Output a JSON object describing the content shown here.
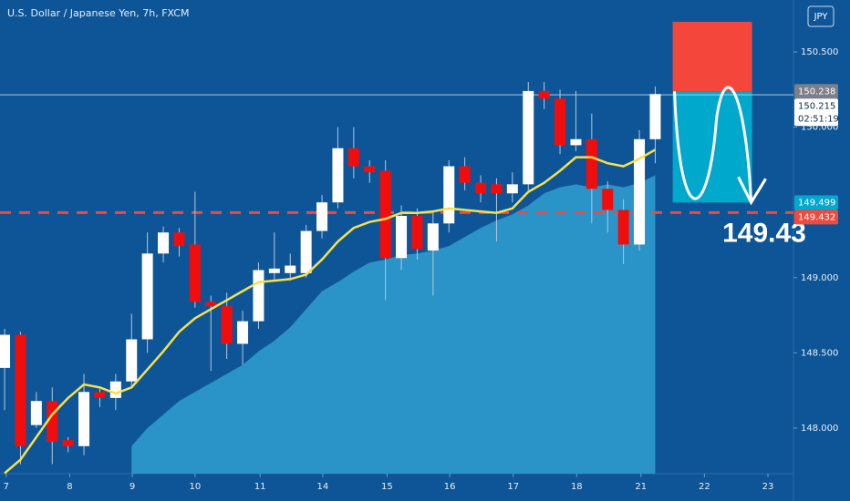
{
  "chart_data": {
    "type": "candlestick",
    "title": "U.S. Dollar / Japanese Yen, 7h, FXCM",
    "currency": "JPY",
    "x": [
      0,
      1,
      2,
      3,
      4,
      5,
      6,
      7,
      8,
      9,
      10,
      11,
      12,
      13,
      14,
      15,
      16,
      17,
      18,
      19,
      20,
      21,
      22,
      23,
      24,
      25,
      26,
      27,
      28,
      29,
      30,
      31,
      32,
      33,
      34,
      35,
      36,
      37,
      38,
      39,
      40,
      41
    ],
    "open": [
      148.4,
      148.62,
      148.02,
      148.18,
      147.92,
      147.88,
      148.24,
      148.2,
      148.31,
      148.59,
      149.16,
      149.3,
      149.22,
      148.84,
      148.81,
      148.56,
      148.71,
      149.03,
      149.03,
      149.03,
      149.31,
      149.5,
      149.86,
      149.74,
      149.71,
      149.13,
      149.41,
      149.18,
      149.36,
      149.74,
      149.63,
      149.62,
      149.56,
      149.62,
      150.24,
      150.19,
      149.88,
      149.92,
      149.59,
      149.45,
      149.22,
      149.92
    ],
    "high": [
      148.66,
      148.64,
      148.24,
      148.27,
      147.94,
      148.36,
      148.26,
      148.36,
      148.76,
      149.3,
      149.34,
      149.33,
      149.57,
      148.88,
      148.9,
      148.78,
      149.1,
      149.3,
      149.16,
      149.35,
      149.55,
      150.0,
      150.0,
      149.78,
      149.78,
      149.48,
      149.46,
      149.44,
      149.78,
      149.8,
      149.68,
      149.66,
      149.7,
      150.3,
      150.3,
      150.25,
      150.24,
      150.09,
      149.64,
      149.52,
      149.98,
      150.27
    ],
    "low": [
      148.12,
      147.76,
      148.0,
      147.76,
      147.84,
      147.82,
      148.14,
      148.12,
      148.28,
      148.5,
      149.1,
      149.14,
      148.8,
      148.38,
      148.46,
      148.42,
      148.66,
      148.98,
      148.98,
      149.0,
      149.26,
      149.46,
      149.66,
      149.63,
      148.85,
      149.05,
      149.12,
      148.88,
      149.3,
      149.58,
      149.5,
      149.24,
      149.5,
      149.58,
      150.12,
      149.82,
      149.84,
      149.36,
      149.3,
      149.09,
      149.18,
      149.76
    ],
    "close": [
      148.62,
      147.88,
      148.18,
      147.91,
      147.88,
      148.24,
      148.2,
      148.31,
      148.59,
      149.16,
      149.3,
      149.21,
      148.84,
      148.81,
      148.56,
      148.71,
      149.05,
      149.06,
      149.08,
      149.31,
      149.5,
      149.86,
      149.74,
      149.7,
      149.13,
      149.41,
      149.19,
      149.36,
      149.74,
      149.63,
      149.56,
      149.56,
      149.62,
      150.24,
      150.19,
      149.88,
      149.92,
      149.59,
      149.45,
      149.22,
      149.92,
      150.22
    ],
    "up_color": "#ffffff",
    "down_color": "#f20d0d",
    "ma_line": {
      "color": "#f7e14a",
      "values": [
        147.7,
        147.79,
        147.94,
        148.09,
        148.2,
        148.29,
        148.27,
        148.23,
        148.27,
        148.39,
        148.51,
        148.64,
        148.73,
        148.79,
        148.85,
        148.91,
        148.97,
        148.98,
        148.99,
        149.02,
        149.12,
        149.24,
        149.33,
        149.37,
        149.39,
        149.43,
        149.43,
        149.44,
        149.46,
        149.45,
        149.44,
        149.43,
        149.46,
        149.57,
        149.63,
        149.71,
        149.8,
        149.8,
        149.76,
        149.74,
        149.79,
        149.85
      ]
    },
    "ma_area": {
      "color": "#2f9fd0",
      "values": [
        null,
        null,
        null,
        null,
        null,
        null,
        null,
        null,
        147.88,
        148.0,
        148.09,
        148.18,
        148.24,
        148.3,
        148.36,
        148.42,
        148.51,
        148.58,
        148.67,
        148.79,
        148.91,
        148.97,
        149.04,
        149.1,
        149.12,
        149.15,
        149.16,
        149.18,
        149.21,
        149.27,
        149.33,
        149.38,
        149.42,
        149.48,
        149.56,
        149.6,
        149.62,
        149.6,
        149.62,
        149.6,
        149.63,
        149.68
      ]
    },
    "xlim": [
      -0.29,
      49.71
    ],
    "xticks": [
      {
        "value": 0.1,
        "label": "7"
      },
      {
        "value": 4.1,
        "label": "8"
      },
      {
        "value": 8.05,
        "label": "9"
      },
      {
        "value": 12,
        "label": "10"
      },
      {
        "value": 16.1,
        "label": "11"
      },
      {
        "value": 20.05,
        "label": "14"
      },
      {
        "value": 24.1,
        "label": "15"
      },
      {
        "value": 28.05,
        "label": "16"
      },
      {
        "value": 32.05,
        "label": "17"
      },
      {
        "value": 36.05,
        "label": "18"
      },
      {
        "value": 40.1,
        "label": "21"
      },
      {
        "value": 44.1,
        "label": "22"
      },
      {
        "value": 48.1,
        "label": "23"
      }
    ],
    "ylim": [
      147.697,
      150.845
    ],
    "yticks": [
      {
        "value": 148,
        "label": "148.000"
      },
      {
        "value": 148.5,
        "label": "148.500"
      },
      {
        "value": 149,
        "label": "149.000"
      },
      {
        "value": 150,
        "label": "150.000"
      },
      {
        "value": 150.5,
        "label": "150.500"
      }
    ],
    "last_price": 150.215,
    "countdown": "02:51:19",
    "price_badges": [
      {
        "value": 150.238,
        "color": "#7a7f8a"
      },
      {
        "value": 149.499,
        "color": "#00a8cc"
      },
      {
        "value": 149.432,
        "color": "#f04a3e"
      }
    ],
    "level_line": {
      "value": 149.432,
      "color": "#f04a3e"
    },
    "position": {
      "x": [
        42.1,
        47.1
      ],
      "entry": 150.238,
      "stop": 150.7,
      "target": 149.499,
      "stop_color": "#f5463c",
      "target_color": "#00a8cc"
    },
    "annotation": 149.43
  }
}
